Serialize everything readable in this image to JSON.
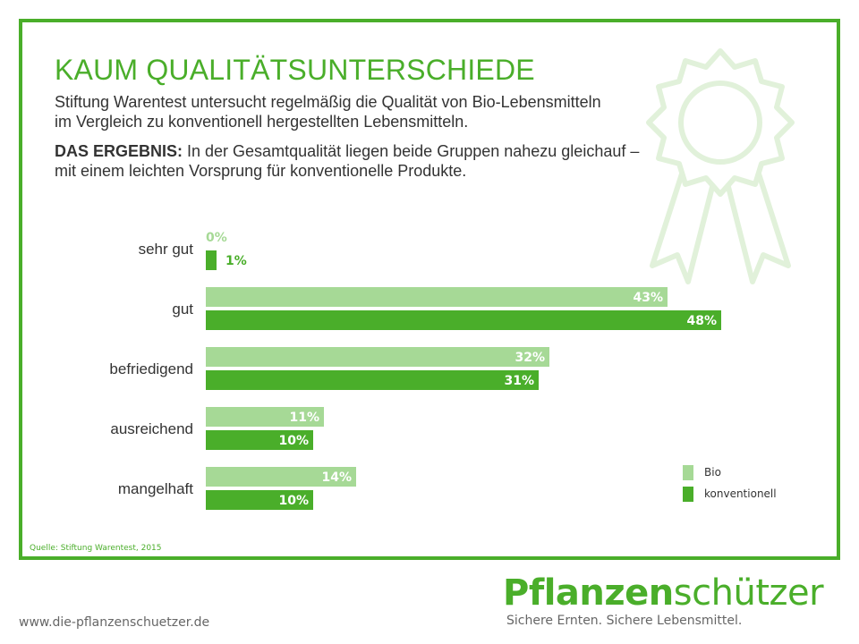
{
  "title": "KAUM QUALITÄTSUNTERSCHIEDE",
  "intro_line1": "Stiftung Warentest untersucht regelmäßig die Qualität von Bio-Lebensmitteln",
  "intro_line2": "im Vergleich zu konventionell hergestellten Lebensmitteln.",
  "result_label": "DAS ERGEBNIS:",
  "result_text_line1": " In der Gesamtqualität liegen beide Gruppen nahezu gleichauf –",
  "result_text_line2": "mit einem leichten Vorsprung für konventionelle Produkte.",
  "source": "Quelle: Stiftung Warentest, 2015",
  "website": "www.die-pflanzenschuetzer.de",
  "brand": {
    "bold": "Pflanzen",
    "light": "schützer"
  },
  "tagline": "Sichere Ernten. Sichere Lebensmittel.",
  "colors": {
    "bio": "#a6d996",
    "konventionell": "#4aae2a",
    "accent": "#4aae2a",
    "badge": "#e1f1da"
  },
  "icons": {
    "badge": "award-rosette-icon"
  },
  "chart_data": {
    "type": "bar",
    "orientation": "horizontal",
    "categories": [
      "sehr gut",
      "gut",
      "befriedigend",
      "ausreichend",
      "mangelhaft"
    ],
    "series": [
      {
        "name": "Bio",
        "values": [
          0,
          43,
          32,
          11,
          14
        ],
        "labels": [
          "0%",
          "43%",
          "32%",
          "11%",
          "14%"
        ]
      },
      {
        "name": "konventionell",
        "values": [
          1,
          48,
          31,
          10,
          10
        ],
        "labels": [
          "1%",
          "48%",
          "31%",
          "10%",
          "10%"
        ]
      }
    ],
    "unit": "%",
    "grid": false,
    "legend_position": "bottom-right"
  }
}
